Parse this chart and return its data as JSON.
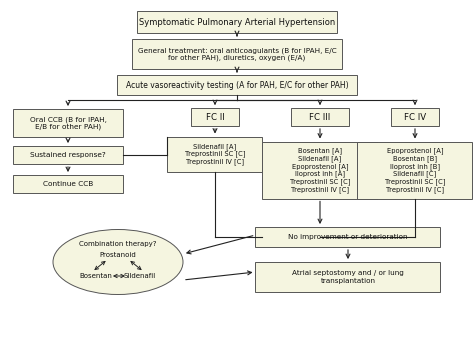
{
  "bg_color": "#fafaf0",
  "box_fc": "#f5f5e0",
  "box_ec": "#555555",
  "arrow_color": "#222222",
  "text_color": "#111111",
  "symptomatic_text": "Symptomatic Pulmonary Arterial Hypertension",
  "general_text": "General treatment: oral anticoagulants (B for IPAH, E/C\nfor other PAH), diuretics, oxygen (E/A)",
  "acute_text": "Acute vasoreactivity testing (A for PAH, E/C for other PAH)",
  "oralccb_text": "Oral CCB (B for IPAH,\nE/B for other PAH)",
  "sustained_text": "Sustained response?",
  "continueccb_text": "Continue CCB",
  "fc2_text": "FC II",
  "fc3_text": "FC III",
  "fc4_text": "FC IV",
  "fc2drugs_text": "Sildenafil [A]\nTreprostinil SC [C]\nTreprostinil IV [C]",
  "fc3drugs_text": "Bosentan [A]\nSildenafil [A]\nEpoprostenol [A]\nIloprost inh [A]\nTreprostinil SC [C]\nTreprostinil IV [C]",
  "fc4drugs_text": "Epoprostenol [A]\nBosentan [B]\nIloprost inh [B]\nSildenafil [C]\nTreprostinil SC [C]\nTreprostinil IV [C]",
  "noimprovement_text": "No improvement or deterioration",
  "atrial_text": "Atrial septostomy and / or lung\ntransplantation",
  "combo_text1": "Combination therapy?",
  "combo_text2": "Prostanoid",
  "combo_text3": "Bosentan",
  "combo_text4": "Sildenafil"
}
